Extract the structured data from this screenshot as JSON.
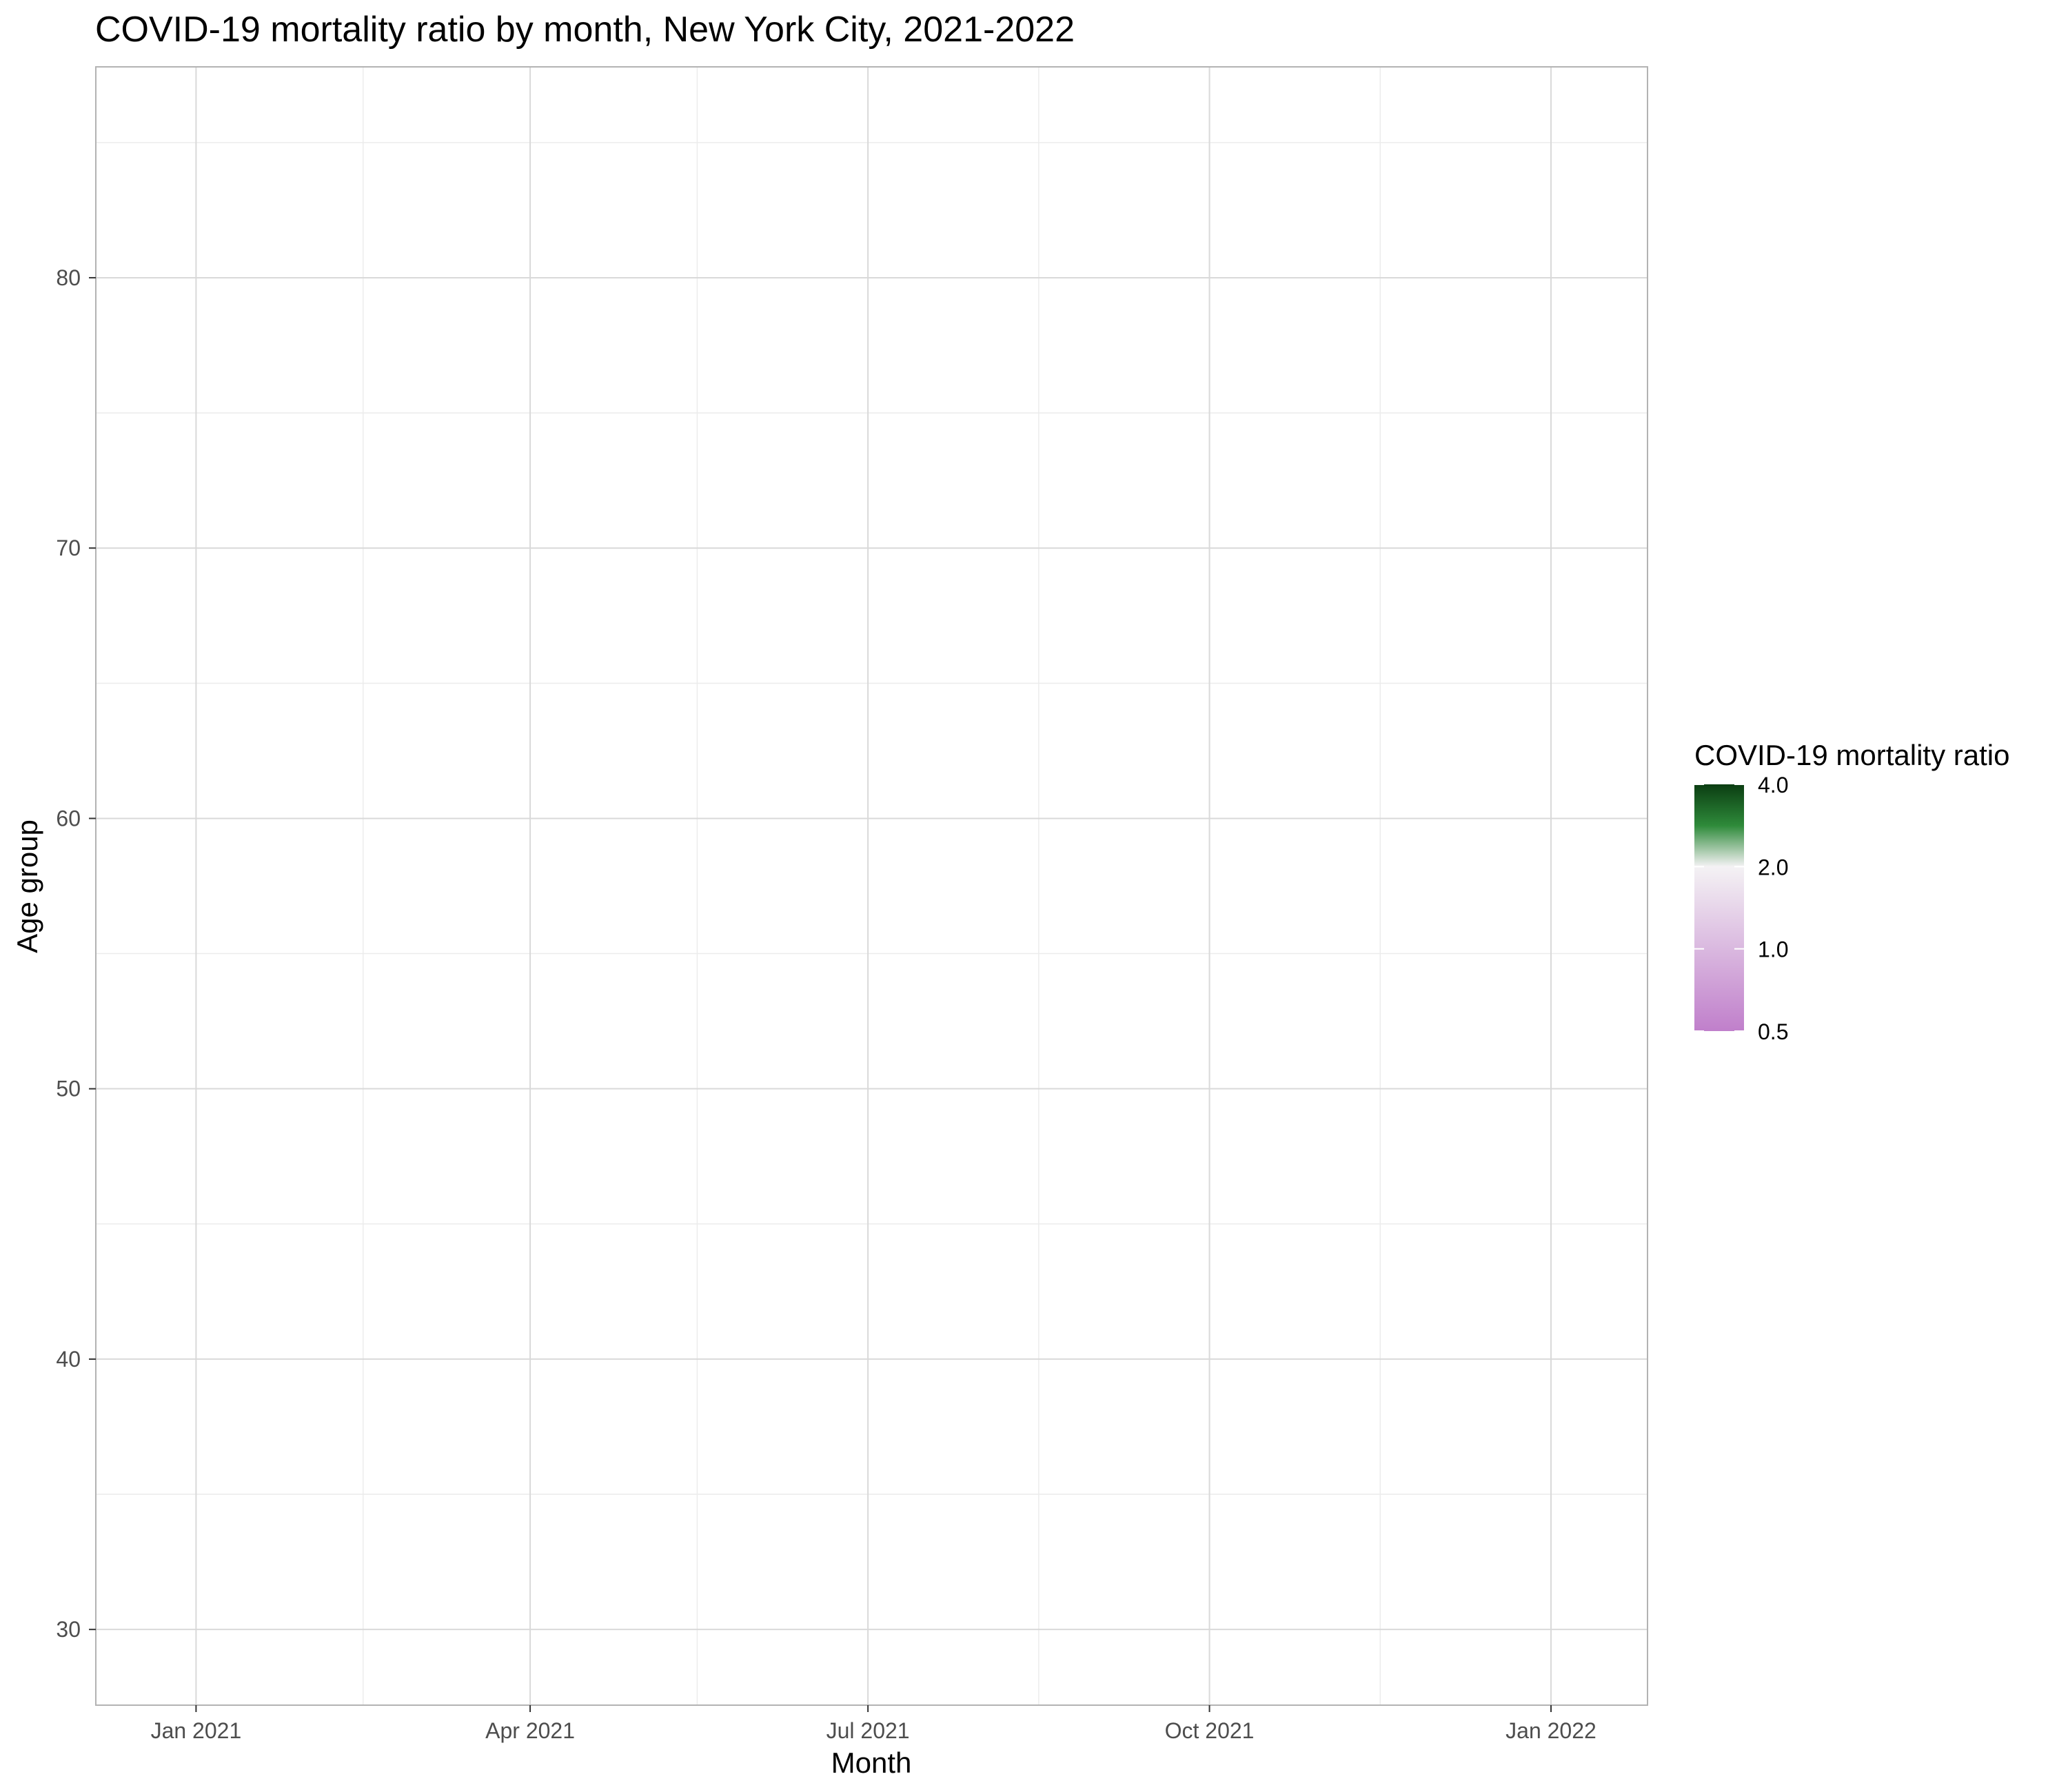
{
  "chart_data": {
    "type": "heatmap",
    "title": "COVID-19 mortality ratio by month, New York City, 2021-2022",
    "xlabel": "Month",
    "ylabel": "Age group",
    "x_scale": "date",
    "xlim": [
      "2020-12-05",
      "2022-01-27"
    ],
    "x_ticks": [
      {
        "value": "2021-01-01",
        "label": "Jan 2021"
      },
      {
        "value": "2021-04-01",
        "label": "Apr 2021"
      },
      {
        "value": "2021-07-01",
        "label": "Jul 2021"
      },
      {
        "value": "2021-10-01",
        "label": "Oct 2021"
      },
      {
        "value": "2022-01-01",
        "label": "Jan 2022"
      }
    ],
    "x_minor_ticks": [
      "2021-02-15",
      "2021-05-16",
      "2021-08-16",
      "2021-11-16"
    ],
    "ylim": [
      27.2,
      87.8
    ],
    "y_ticks": [
      30,
      40,
      50,
      60,
      70,
      80
    ],
    "y_minor_ticks": [
      35,
      45,
      55,
      65,
      75,
      85
    ],
    "grid": true,
    "cells": [],
    "legend": {
      "title": "COVID-19 mortality ratio",
      "position": "right",
      "scale": "log",
      "range": [
        0.5,
        4.0
      ],
      "breaks": [
        {
          "value": 4.0,
          "label": "4.0"
        },
        {
          "value": 2.0,
          "label": "2.0"
        },
        {
          "value": 1.0,
          "label": "1.0"
        },
        {
          "value": 0.5,
          "label": "0.5"
        }
      ],
      "colors": {
        "high": "#0b3d12",
        "upper_mid": "#2e8a3a",
        "mid": "#f4f2f4",
        "low": "#c07fcb"
      }
    },
    "colors": {
      "panel_border": "#b3b3b3",
      "grid_major": "#d9d9d9",
      "grid_minor": "#ececec"
    }
  }
}
